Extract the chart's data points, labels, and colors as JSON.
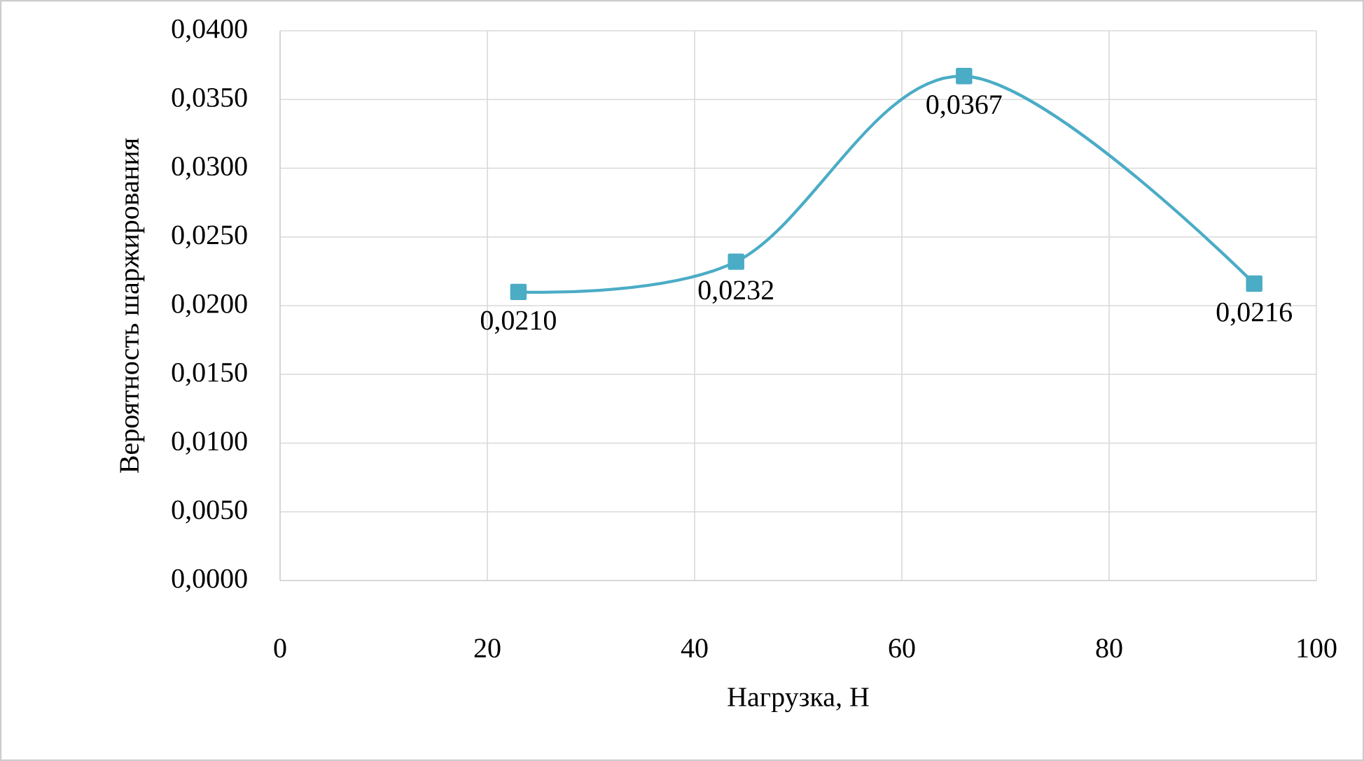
{
  "chart_data": {
    "type": "line",
    "xlabel": "Нагрузка, Н",
    "ylabel": "Вероятность шаржирования",
    "x": [
      23,
      44,
      66,
      94
    ],
    "series": [
      {
        "color": "#4bacc6",
        "values": [
          0.021,
          0.0232,
          0.0367,
          0.0216
        ],
        "value_labels": [
          "0,0210",
          "0,0232",
          "0,0367",
          "0,0216"
        ]
      }
    ],
    "xlim": [
      0,
      100
    ],
    "xticks": [
      0,
      20,
      40,
      60,
      80,
      100
    ],
    "ylim": [
      0,
      0.04
    ],
    "yticks": [
      {
        "value": 0,
        "label": "0,0000"
      },
      {
        "value": 0.005,
        "label": "0,0050"
      },
      {
        "value": 0.01,
        "label": "0,0100"
      },
      {
        "value": 0.015,
        "label": "0,0150"
      },
      {
        "value": 0.02,
        "label": "0,0200"
      },
      {
        "value": 0.025,
        "label": "0,0250"
      },
      {
        "value": 0.03,
        "label": "0,0300"
      },
      {
        "value": 0.035,
        "label": "0,0350"
      },
      {
        "value": 0.04,
        "label": "0,0400"
      }
    ],
    "grid": true,
    "marker": "square",
    "line_style": "solid"
  }
}
